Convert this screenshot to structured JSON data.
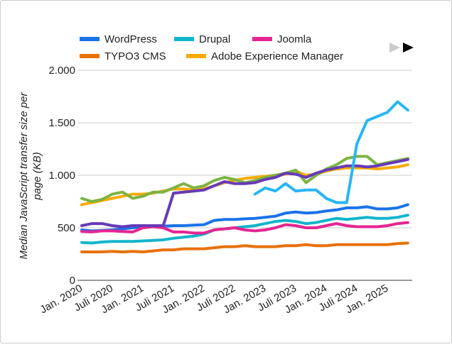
{
  "chart_data": {
    "type": "line",
    "y_label": "Median JavaScript transfer size per page (KB)",
    "categories": [
      "Jan. 2020",
      null,
      null,
      "Juli 2020",
      null,
      null,
      "Jan. 2021",
      null,
      null,
      "Juli 2021",
      null,
      null,
      "Jan. 2022",
      null,
      null,
      "Juli 2022",
      null,
      null,
      "Jan. 2023",
      null,
      null,
      "Juli 2023",
      null,
      null,
      "Jan. 2024",
      null,
      null,
      "Juli 2024",
      null,
      null,
      "Jan. 2025",
      null,
      null
    ],
    "ylim": [
      0,
      2000
    ],
    "yticks": [
      0,
      500,
      {
        "value": 1000,
        "label": "1.000"
      },
      {
        "value": 1500,
        "label": "1.500"
      },
      {
        "value": 2000,
        "label": "2.000"
      }
    ],
    "series": [
      {
        "name": "WordPress",
        "color": "#1a73e8",
        "values": [
          480,
          470,
          475,
          480,
          490,
          500,
          510,
          510,
          515,
          520,
          520,
          525,
          530,
          570,
          580,
          580,
          585,
          590,
          600,
          610,
          640,
          650,
          640,
          645,
          660,
          670,
          690,
          690,
          700,
          680,
          680,
          690,
          720
        ]
      },
      {
        "name": "Drupal",
        "color": "#12b5cb",
        "values": [
          360,
          355,
          365,
          370,
          370,
          370,
          375,
          380,
          385,
          400,
          410,
          420,
          440,
          480,
          490,
          500,
          510,
          520,
          540,
          560,
          570,
          560,
          540,
          550,
          570,
          590,
          580,
          590,
          600,
          590,
          590,
          600,
          620
        ]
      },
      {
        "name": "Joomla",
        "color": "#e52592",
        "values": [
          465,
          460,
          470,
          470,
          465,
          460,
          500,
          510,
          500,
          460,
          460,
          450,
          450,
          480,
          490,
          500,
          480,
          470,
          480,
          500,
          530,
          520,
          500,
          500,
          520,
          540,
          520,
          510,
          510,
          510,
          520,
          540,
          550
        ]
      },
      {
        "name": "TYPO3 CMS",
        "color": "#e8710a",
        "values": [
          270,
          270,
          270,
          275,
          270,
          275,
          270,
          280,
          290,
          290,
          300,
          300,
          300,
          310,
          320,
          320,
          330,
          320,
          320,
          320,
          330,
          330,
          340,
          330,
          330,
          340,
          340,
          340,
          340,
          340,
          340,
          350,
          355
        ]
      },
      {
        "name": "Adobe Experience Manager",
        "color": "#f9ab00",
        "values": [
          720,
          740,
          760,
          780,
          800,
          820,
          820,
          830,
          850,
          870,
          870,
          860,
          870,
          900,
          930,
          950,
          970,
          980,
          990,
          1000,
          1010,
          1040,
          1000,
          1010,
          1040,
          1060,
          1070,
          1070,
          1070,
          1060,
          1070,
          1080,
          1100
        ]
      },
      {
        "color": "#7cb342",
        "values": [
          780,
          750,
          770,
          820,
          840,
          780,
          800,
          840,
          840,
          880,
          920,
          880,
          900,
          950,
          980,
          960,
          930,
          950,
          980,
          1000,
          1020,
          1050,
          930,
          1000,
          1060,
          1100,
          1160,
          1180,
          1180,
          1100,
          1120,
          1140,
          1160
        ]
      },
      {
        "color": "#673ab7",
        "values": [
          520,
          540,
          540,
          520,
          510,
          520,
          520,
          520,
          520,
          830,
          840,
          850,
          860,
          900,
          940,
          920,
          920,
          930,
          960,
          980,
          1020,
          1010,
          980,
          1020,
          1050,
          1070,
          1090,
          1090,
          1080,
          1090,
          1110,
          1130,
          1150
        ]
      },
      {
        "color": "#29b6f6",
        "values": [
          null,
          null,
          null,
          null,
          null,
          null,
          null,
          null,
          null,
          null,
          null,
          null,
          null,
          null,
          null,
          null,
          null,
          820,
          880,
          850,
          920,
          850,
          860,
          860,
          780,
          740,
          740,
          1300,
          1520,
          1560,
          1600,
          1700,
          1620
        ]
      }
    ]
  }
}
